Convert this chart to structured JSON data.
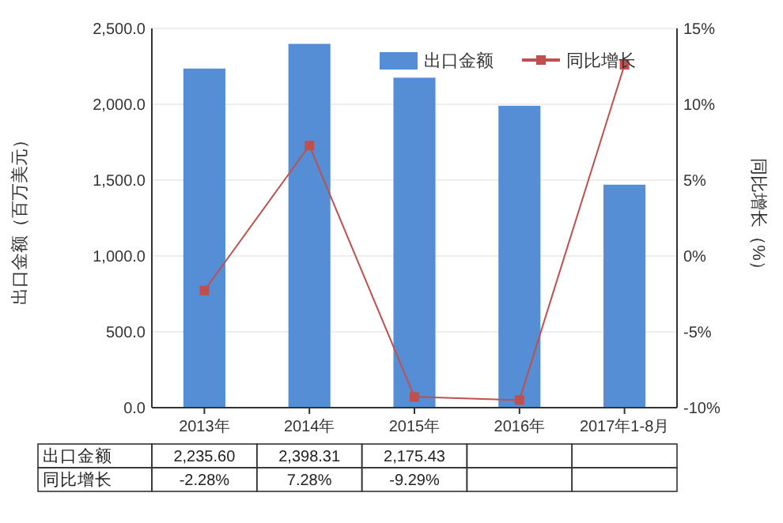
{
  "chart_data": {
    "type": "bar",
    "categories": [
      "2013年",
      "2014年",
      "2015年",
      "2016年",
      "2017年1-8月"
    ],
    "series": [
      {
        "name": "出口金额",
        "color": "#558ed5",
        "values": [
          2235.6,
          2398.31,
          2175.43,
          1990,
          1470
        ],
        "value_labels": [
          "2,235.60",
          "2,398.31",
          "2,175.43",
          null,
          null
        ]
      },
      {
        "name": "同比增长",
        "type": "line",
        "axis": "y2",
        "color": "#c0504d",
        "marker": "square",
        "values": [
          -2.28,
          7.28,
          -9.29,
          -9.5,
          12.6
        ],
        "value_labels": [
          "-2.28%",
          "7.28%",
          "-9.29%",
          null,
          null
        ]
      }
    ],
    "ylabel": "出口金额（百万美元）",
    "y2label": "同比增长（%）",
    "ylim": [
      0,
      2500
    ],
    "yticks": [
      {
        "value": 0,
        "label": "0.0"
      },
      {
        "value": 500,
        "label": "500.0"
      },
      {
        "value": 1000,
        "label": "1,000.0"
      },
      {
        "value": 1500,
        "label": "1,500.0"
      },
      {
        "value": 2000,
        "label": "2,000.0"
      },
      {
        "value": 2500,
        "label": "2,500.0"
      }
    ],
    "y2lim": [
      -10,
      15
    ],
    "y2ticks": [
      {
        "value": -10,
        "label": "-10%"
      },
      {
        "value": -5,
        "label": "-5%"
      },
      {
        "value": 0,
        "label": "0%"
      },
      {
        "value": 5,
        "label": "5%"
      },
      {
        "value": 10,
        "label": "10%"
      },
      {
        "value": 15,
        "label": "15%"
      }
    ],
    "grid": "y",
    "legend": "top right"
  }
}
